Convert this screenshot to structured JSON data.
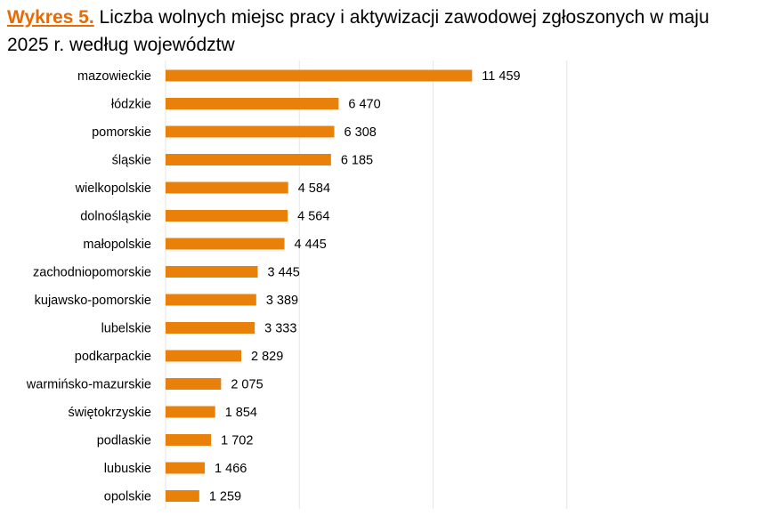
{
  "title": {
    "prefix": "Wykres 5.",
    "text": "Liczba wolnych miejsc pracy i aktywizacji zawodowej zgłoszonych w maju 2025 r. według województw"
  },
  "colors": {
    "accent": "#E36C09",
    "bar": "#E8800A"
  },
  "chart_data": {
    "type": "bar",
    "orientation": "horizontal",
    "title": "Liczba wolnych miejsc pracy i aktywizacji zawodowej zgłoszonych w maju 2025 r. według województw",
    "categories": [
      "mazowieckie",
      "łódzkie",
      "pomorskie",
      "śląskie",
      "wielkopolskie",
      "dolnośląskie",
      "małopolskie",
      "zachodniopomorskie",
      "kujawsko-pomorskie",
      "lubelskie",
      "podkarpackie",
      "warmińsko-mazurskie",
      "świętokrzyskie",
      "podlaskie",
      "lubuskie",
      "opolskie"
    ],
    "values": [
      11459,
      6470,
      6308,
      6185,
      4584,
      4564,
      4445,
      3445,
      3389,
      3333,
      2829,
      2075,
      1854,
      1702,
      1466,
      1259
    ],
    "value_labels": [
      "11 459",
      "6 470",
      "6 308",
      "6 185",
      "4 584",
      "4 564",
      "4 445",
      "3 445",
      "3 389",
      "3 333",
      "2 829",
      "2 075",
      "1 854",
      "1 702",
      "1 466",
      "1 259"
    ],
    "xlim": [
      0,
      15000
    ],
    "gridlines_at": [
      0,
      5000,
      10000,
      15000
    ],
    "grid": true,
    "xlabel": "",
    "ylabel": ""
  }
}
